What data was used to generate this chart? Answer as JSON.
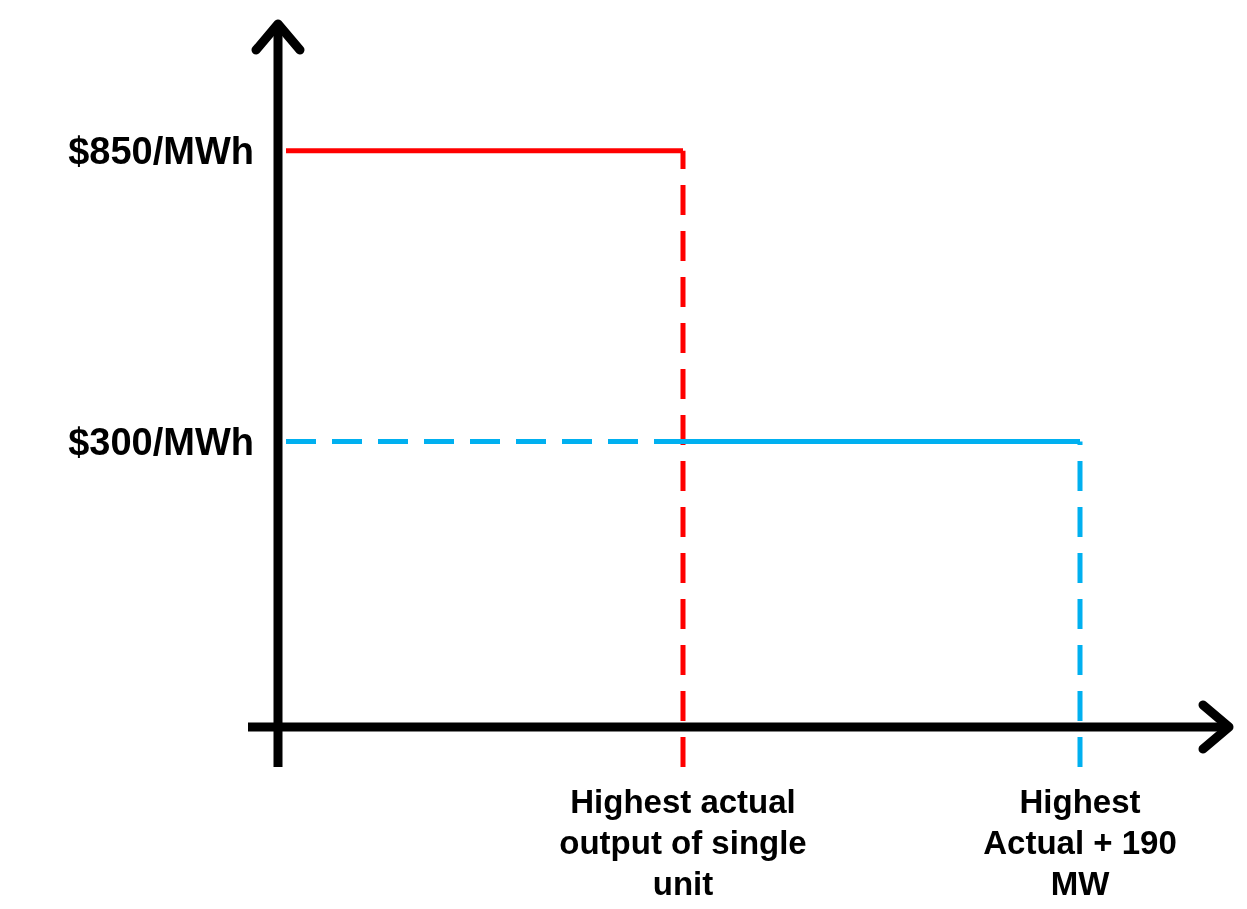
{
  "chart_data": {
    "type": "line",
    "categories": [
      null,
      "Highest actual output of single unit",
      "Highest Actual + 190 MW"
    ],
    "ylim": [
      -240,
      1090
    ],
    "yticks": [
      {
        "value": 850,
        "label": "$850/MWh"
      },
      {
        "value": 300,
        "label": "$300/MWh"
      }
    ],
    "grid": false,
    "marker": "none",
    "series": [
      {
        "color": "#ff0000",
        "values": [
          850,
          850,
          null
        ],
        "line_style": "solid"
      },
      {
        "color": "#00b0f0",
        "values": [
          300,
          300,
          null
        ],
        "line_style": "dashed"
      },
      {
        "color": "#00b0f0",
        "values": [
          null,
          300,
          300
        ],
        "line_style": "solid"
      }
    ],
    "ref_lines": [
      {
        "axis": "x",
        "value": "Highest actual output of single unit",
        "color": "#ff0000",
        "line_style": "dashed"
      },
      {
        "axis": "x",
        "value": "Highest Actual + 190 MW",
        "color": "#00b0f0",
        "line_style": "dashed"
      }
    ]
  }
}
